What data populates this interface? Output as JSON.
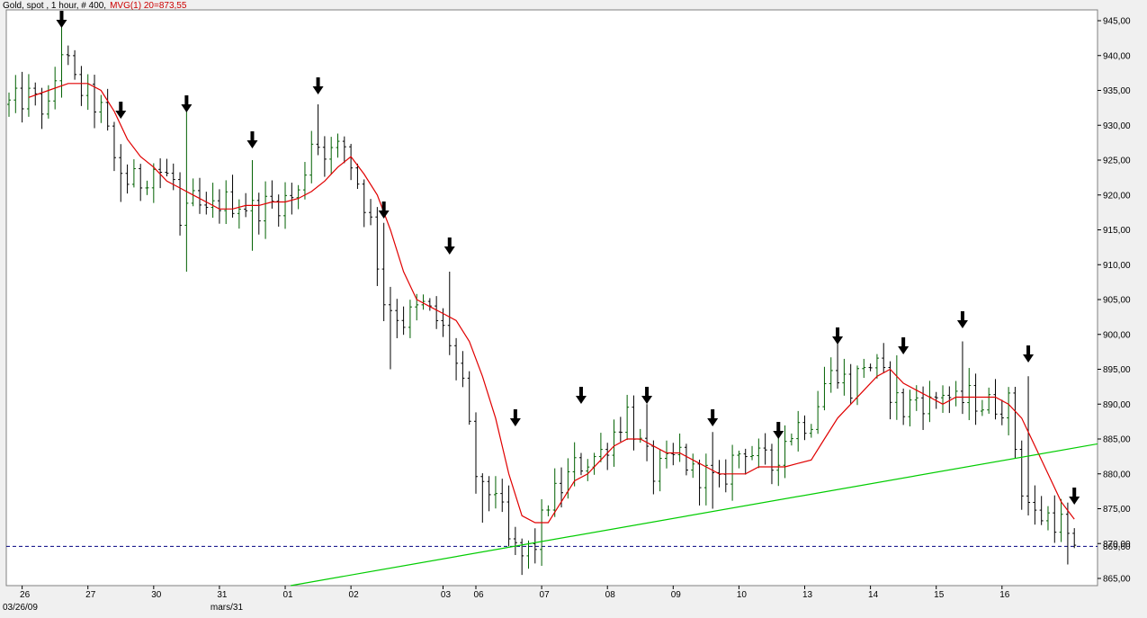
{
  "title_parts": {
    "instrument": "Gold, spot , 1 hour, # 400,",
    "indicator": "MVG(1) 20=873,55"
  },
  "colors": {
    "background": "#f0f0f0",
    "plot_bg": "#ffffff",
    "bar_up": "#006000",
    "bar_down": "#000000",
    "ma_line": "#e00000",
    "trend_line": "#00cc00",
    "ref_line": "#000080",
    "indicator_label": "#cc0000",
    "ref_label": "#0000cc"
  },
  "chart_data": {
    "type": "ohlc",
    "title": "Gold, spot , 1 hour, # 400, MVG(1) 20=873,55",
    "ylim": [
      864,
      946
    ],
    "y_ticks": [
      "945,00",
      "940,00",
      "935,00",
      "930,00",
      "925,00",
      "920,00",
      "915,00",
      "910,00",
      "905,00",
      "900,00",
      "895,00",
      "890,00",
      "885,00",
      "880,00",
      "875,00",
      "870,00",
      "865,00"
    ],
    "y_tick_values": [
      945,
      940,
      935,
      930,
      925,
      920,
      915,
      910,
      905,
      900,
      895,
      890,
      885,
      880,
      875,
      870,
      865
    ],
    "x_count": 163,
    "x_ticks": [
      {
        "label": "26",
        "index": 2
      },
      {
        "label": "27",
        "index": 12
      },
      {
        "label": "30",
        "index": 22
      },
      {
        "label": "31",
        "index": 32
      },
      {
        "label": "01",
        "index": 42
      },
      {
        "label": "02",
        "index": 52
      },
      {
        "label": "03",
        "index": 66
      },
      {
        "label": "06",
        "index": 71
      },
      {
        "label": "07",
        "index": 81
      },
      {
        "label": "08",
        "index": 91
      },
      {
        "label": "09",
        "index": 101
      },
      {
        "label": "10",
        "index": 111
      },
      {
        "label": "13",
        "index": 121
      },
      {
        "label": "14",
        "index": 131
      },
      {
        "label": "15",
        "index": 141
      },
      {
        "label": "16",
        "index": 151
      }
    ],
    "x_sub_labels": [
      {
        "label": "03/26/09",
        "index": 2
      },
      {
        "label": "mars/31",
        "index": 32
      }
    ],
    "price_anchors": [
      [
        0,
        933
      ],
      [
        3,
        934
      ],
      [
        6,
        932
      ],
      [
        8,
        941
      ],
      [
        10,
        936
      ],
      [
        14,
        932
      ],
      [
        16,
        925
      ],
      [
        18,
        922
      ],
      [
        20,
        922
      ],
      [
        22,
        924
      ],
      [
        25,
        922
      ],
      [
        26,
        915
      ],
      [
        28,
        919
      ],
      [
        30,
        917
      ],
      [
        32,
        919
      ],
      [
        35,
        919
      ],
      [
        37,
        918
      ],
      [
        41,
        919
      ],
      [
        44,
        920
      ],
      [
        46,
        928
      ],
      [
        49,
        926
      ],
      [
        51,
        927
      ],
      [
        53,
        922
      ],
      [
        55,
        916
      ],
      [
        57,
        905
      ],
      [
        60,
        902
      ],
      [
        63,
        904
      ],
      [
        65,
        902
      ],
      [
        67,
        899
      ],
      [
        69,
        892
      ],
      [
        71,
        880
      ],
      [
        72,
        877
      ],
      [
        74,
        878
      ],
      [
        76,
        870
      ],
      [
        78,
        868
      ],
      [
        80,
        870
      ],
      [
        82,
        876
      ],
      [
        84,
        878
      ],
      [
        86,
        881
      ],
      [
        88,
        882
      ],
      [
        90,
        883
      ],
      [
        92,
        886
      ],
      [
        94,
        889
      ],
      [
        96,
        884
      ],
      [
        98,
        880
      ],
      [
        100,
        881
      ],
      [
        102,
        883
      ],
      [
        104,
        880
      ],
      [
        106,
        880
      ],
      [
        108,
        878
      ],
      [
        110,
        882
      ],
      [
        112,
        884
      ],
      [
        114,
        882
      ],
      [
        116,
        881
      ],
      [
        118,
        885
      ],
      [
        120,
        887
      ],
      [
        122,
        888
      ],
      [
        124,
        893
      ],
      [
        126,
        895
      ],
      [
        128,
        892
      ],
      [
        130,
        896
      ],
      [
        132,
        895
      ],
      [
        134,
        892
      ],
      [
        136,
        889
      ],
      [
        138,
        891
      ],
      [
        140,
        890
      ],
      [
        142,
        892
      ],
      [
        144,
        890
      ],
      [
        146,
        891
      ],
      [
        148,
        890
      ],
      [
        150,
        890
      ],
      [
        152,
        890
      ],
      [
        154,
        878
      ],
      [
        156,
        874
      ],
      [
        158,
        874
      ],
      [
        160,
        873
      ],
      [
        162,
        868
      ]
    ],
    "spikes": [
      {
        "index": 8,
        "high": 945.5
      },
      {
        "index": 17,
        "low": 919
      },
      {
        "index": 27,
        "high": 933,
        "low": 909
      },
      {
        "index": 37,
        "high": 925,
        "low": 912
      },
      {
        "index": 47,
        "high": 933
      },
      {
        "index": 57,
        "high": 916
      },
      {
        "index": 58,
        "low": 895
      },
      {
        "index": 67,
        "high": 909
      },
      {
        "index": 72,
        "low": 873
      },
      {
        "index": 78,
        "low": 865.5
      },
      {
        "index": 87,
        "high": 883
      },
      {
        "index": 97,
        "high": 890
      },
      {
        "index": 107,
        "high": 886,
        "low": 875
      },
      {
        "index": 117,
        "high": 886
      },
      {
        "index": 126,
        "high": 899.5
      },
      {
        "index": 135,
        "high": 897
      },
      {
        "index": 145,
        "high": 899
      },
      {
        "index": 155,
        "high": 894
      },
      {
        "index": 161,
        "low": 867
      }
    ],
    "moving_average": {
      "name": "MVG(1) 20",
      "value": "873,55",
      "points": [
        [
          3,
          934
        ],
        [
          6,
          935
        ],
        [
          9,
          936
        ],
        [
          12,
          936
        ],
        [
          14,
          935
        ],
        [
          16,
          932
        ],
        [
          18,
          928
        ],
        [
          20,
          925.5
        ],
        [
          22,
          924
        ],
        [
          24,
          922
        ],
        [
          26,
          921
        ],
        [
          28,
          920
        ],
        [
          30,
          919
        ],
        [
          32,
          918
        ],
        [
          34,
          918
        ],
        [
          36,
          918.5
        ],
        [
          38,
          918.5
        ],
        [
          40,
          919
        ],
        [
          42,
          919
        ],
        [
          44,
          919.5
        ],
        [
          46,
          920.5
        ],
        [
          48,
          922
        ],
        [
          50,
          924
        ],
        [
          52,
          925.5
        ],
        [
          54,
          923
        ],
        [
          56,
          920
        ],
        [
          58,
          915
        ],
        [
          60,
          909
        ],
        [
          62,
          905
        ],
        [
          64,
          904
        ],
        [
          66,
          903
        ],
        [
          68,
          902
        ],
        [
          70,
          899
        ],
        [
          72,
          894
        ],
        [
          74,
          888
        ],
        [
          76,
          880
        ],
        [
          78,
          874
        ],
        [
          80,
          873
        ],
        [
          82,
          873
        ],
        [
          84,
          876
        ],
        [
          86,
          879
        ],
        [
          88,
          880
        ],
        [
          90,
          882
        ],
        [
          92,
          884
        ],
        [
          94,
          885
        ],
        [
          96,
          885
        ],
        [
          98,
          884
        ],
        [
          100,
          883
        ],
        [
          102,
          883
        ],
        [
          104,
          882
        ],
        [
          106,
          881
        ],
        [
          108,
          880
        ],
        [
          110,
          880
        ],
        [
          112,
          880
        ],
        [
          114,
          881
        ],
        [
          116,
          881
        ],
        [
          118,
          881
        ],
        [
          120,
          881.5
        ],
        [
          122,
          882
        ],
        [
          124,
          885
        ],
        [
          126,
          888
        ],
        [
          128,
          890
        ],
        [
          130,
          892
        ],
        [
          132,
          894
        ],
        [
          134,
          895
        ],
        [
          136,
          893
        ],
        [
          138,
          892
        ],
        [
          140,
          891
        ],
        [
          142,
          890
        ],
        [
          144,
          891
        ],
        [
          146,
          891
        ],
        [
          148,
          891
        ],
        [
          150,
          891
        ],
        [
          152,
          890
        ],
        [
          154,
          888
        ],
        [
          156,
          884
        ],
        [
          158,
          880
        ],
        [
          160,
          876
        ],
        [
          162,
          873.5
        ]
      ]
    },
    "trend_line": {
      "start": [
        40,
        863.5
      ],
      "end": [
        174,
        885.7
      ]
    },
    "reference_line": {
      "value": 869.6,
      "label": "869,60"
    },
    "arrows": [
      8,
      17,
      27,
      37,
      47,
      57,
      67,
      77,
      87,
      97,
      107,
      117,
      126,
      136,
      145,
      155,
      162
    ]
  }
}
